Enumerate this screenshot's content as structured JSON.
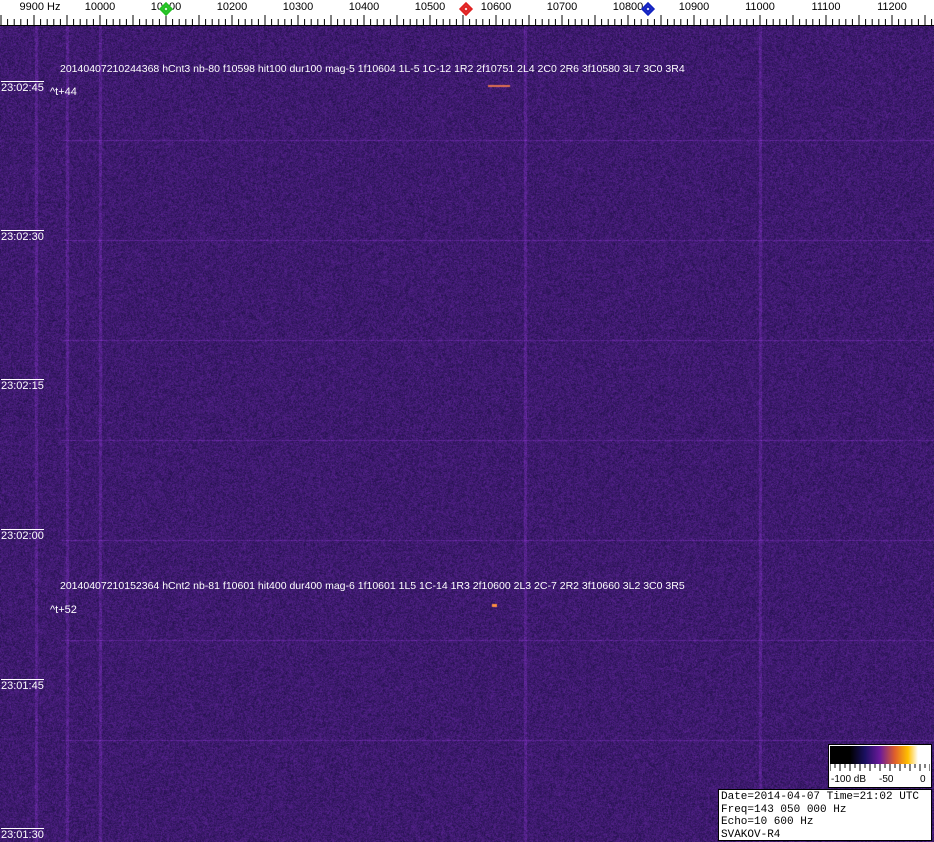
{
  "frequency_axis": {
    "unit": "Hz",
    "labels": [
      "9900",
      "10000",
      "10100",
      "10200",
      "10300",
      "10400",
      "10500",
      "10600",
      "10700",
      "10800",
      "10900",
      "11000",
      "11100",
      "11200"
    ]
  },
  "markers": [
    {
      "name": "green-marker",
      "color": "#20c020",
      "freq": 10100
    },
    {
      "name": "red-marker",
      "color": "#e02020",
      "freq": 10555
    },
    {
      "name": "blue-marker",
      "color": "#1020c0",
      "freq": 10830
    }
  ],
  "time_labels": [
    "23:02:45",
    "23:02:30",
    "23:02:15",
    "23:02:00",
    "23:01:45",
    "23:01:30"
  ],
  "detections": [
    {
      "text": "20140407210244368 hCnt3 nb-80 f10598 hit100 dur100 mag-5 1f10604 1L-5 1C-12 1R2 2f10751 2L4 2C0 2R6 3f10580 3L7 3C0 3R4",
      "offset": "^t+44"
    },
    {
      "text": "20140407210152364 hCnt2 nb-81 f10601 hit400 dur400 mag-6 1f10601 1L5 1C-14 1R3 2f10600 2L3 2C-7 2R2 3f10660 3L2 3C0 3R5",
      "offset": "^t+52"
    }
  ],
  "color_scale": {
    "labels": [
      "-100 dB",
      "-50",
      "0"
    ]
  },
  "info": {
    "line1": "Date=2014-04-07 Time=21:02 UTC",
    "line2": "Freq=143 050 000 Hz",
    "line3": "Echo=10 600 Hz",
    "line4": "SVAKOV-R4"
  }
}
